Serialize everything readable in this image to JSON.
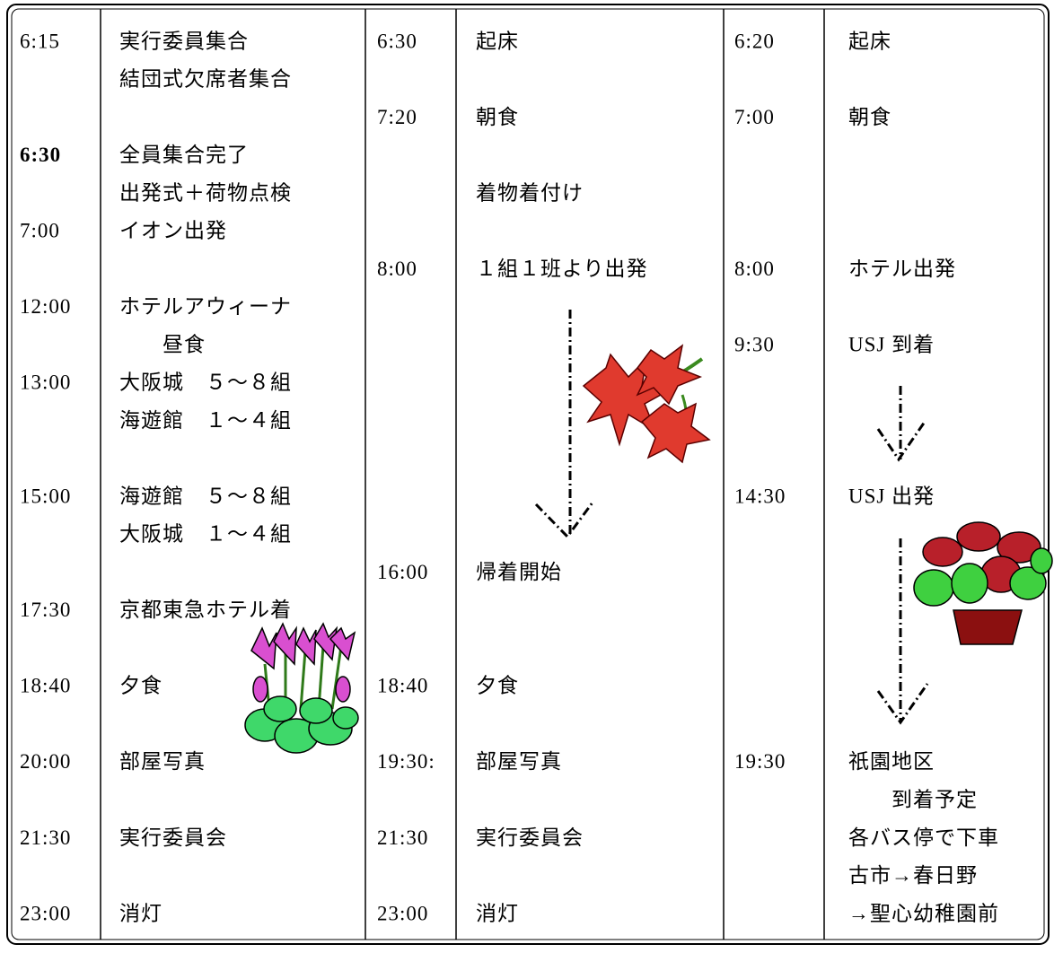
{
  "columns": [
    {
      "lines": [
        {
          "time": "6:15",
          "text": "実行委員集合"
        },
        {
          "text": "結団式欠席者集合"
        },
        null,
        {
          "time": "6:30",
          "text": "全員集合完了",
          "bold": true
        },
        {
          "text": "出発式＋荷物点検"
        },
        {
          "time": "7:00",
          "text": "イオン出発"
        },
        null,
        {
          "time": "12:00",
          "text": "ホテルアウィーナ"
        },
        {
          "text": "　　昼食"
        },
        {
          "time": "13:00",
          "text": "大阪城　５～８組"
        },
        {
          "text": "海遊館　１～４組"
        },
        null,
        {
          "time": "15:00",
          "text": "海遊館　５～８組"
        },
        {
          "text": "大阪城　１～４組"
        },
        null,
        {
          "time": "17:30",
          "text": "京都東急ホテル着"
        },
        null,
        {
          "time": "18:40",
          "text": "夕食"
        },
        null,
        {
          "time": "20:00",
          "text": "部屋写真"
        },
        null,
        {
          "time": "21:30",
          "text": "実行委員会"
        },
        null,
        {
          "time": "23:00",
          "text": "消灯"
        }
      ]
    },
    {
      "lines": [
        {
          "time": "6:30",
          "text": "起床"
        },
        null,
        {
          "time": "7:20",
          "text": "朝食"
        },
        null,
        {
          "text": "着物着付け"
        },
        null,
        {
          "time": "8:00",
          "text": "１組１班より出発"
        },
        null,
        null,
        null,
        null,
        null,
        null,
        null,
        {
          "time": "16:00",
          "text": "帰着開始"
        },
        null,
        null,
        {
          "time": "18:40",
          "text": "夕食"
        },
        null,
        {
          "time": "19:30:",
          "text": "部屋写真"
        },
        null,
        {
          "time": "21:30",
          "text": "実行委員会"
        },
        null,
        {
          "time": "23:00",
          "text": "消灯"
        }
      ]
    },
    {
      "lines": [
        {
          "time": "6:20",
          "text": "起床"
        },
        null,
        {
          "time": "7:00",
          "text": "朝食"
        },
        null,
        null,
        null,
        {
          "time": "8:00",
          "text": "ホテル出発"
        },
        null,
        {
          "time": "9:30",
          "text": "USJ 到着"
        },
        null,
        null,
        null,
        {
          "time": "14:30",
          "text": "USJ 出発"
        },
        null,
        null,
        null,
        null,
        null,
        null,
        {
          "time": "19:30",
          "text": "祇園地区"
        },
        {
          "text": "　　到着予定"
        },
        {
          "text": "各バス停で下車"
        },
        {
          "text": "古市→春日野"
        },
        {
          "text": "→聖心幼稚園前"
        }
      ]
    }
  ]
}
